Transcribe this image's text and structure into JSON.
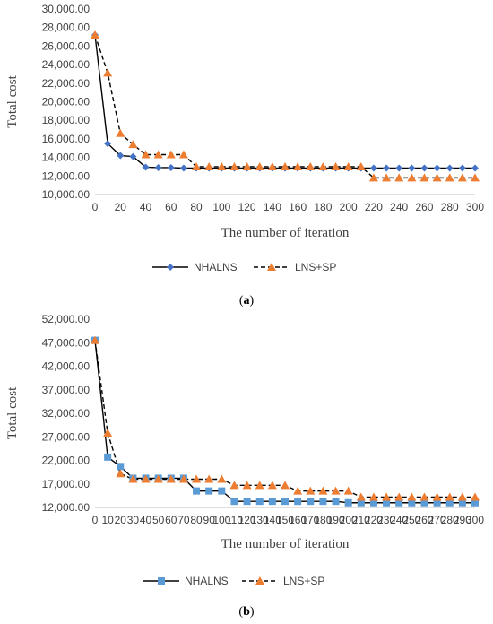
{
  "colors": {
    "nhalns_a": "#4472C4",
    "lns_sp": "#ED7D31",
    "nhalns_b": "#5B9BD5",
    "axis": "#BFBFBF",
    "line": "#000000"
  },
  "chart_data": [
    {
      "type": "line",
      "caption_letter": "a",
      "ylabel": "Total cost",
      "xlabel": "The number of iteration",
      "ylim": [
        10000,
        30000
      ],
      "yticks": [
        10000,
        12000,
        14000,
        16000,
        18000,
        20000,
        22000,
        24000,
        26000,
        28000,
        30000
      ],
      "ytick_labels": [
        "10,000.00",
        "12,000.00",
        "14,000.00",
        "16,000.00",
        "18,000.00",
        "20,000.00",
        "22,000.00",
        "24,000.00",
        "26,000.00",
        "28,000.00",
        "30,000.00"
      ],
      "x": [
        0,
        10,
        20,
        30,
        40,
        50,
        60,
        70,
        80,
        90,
        100,
        110,
        120,
        130,
        140,
        150,
        160,
        170,
        180,
        190,
        200,
        210,
        220,
        230,
        240,
        250,
        260,
        270,
        280,
        290,
        300
      ],
      "xtick_labels": [
        "0",
        "20",
        "40",
        "60",
        "80",
        "100",
        "120",
        "140",
        "160",
        "180",
        "200",
        "220",
        "240",
        "260",
        "280",
        "300"
      ],
      "legend_position": "bottom",
      "series": [
        {
          "name": "NHALNS",
          "marker": "diamond",
          "dash": "solid",
          "values": [
            27200,
            15500,
            14200,
            14100,
            12950,
            12900,
            12900,
            12850,
            12850,
            12850,
            12850,
            12850,
            12850,
            12850,
            12850,
            12850,
            12850,
            12850,
            12850,
            12850,
            12850,
            12850,
            12850,
            12850,
            12850,
            12850,
            12850,
            12850,
            12850,
            12850,
            12850
          ]
        },
        {
          "name": "LNS+SP",
          "marker": "triangle",
          "dash": "dashed",
          "values": [
            27200,
            23100,
            16600,
            15400,
            14300,
            14300,
            14300,
            14300,
            13000,
            13000,
            13000,
            13000,
            13000,
            13000,
            13000,
            13000,
            13000,
            13000,
            13000,
            13000,
            13000,
            13000,
            11800,
            11800,
            11800,
            11800,
            11800,
            11800,
            11800,
            11800,
            11800
          ]
        }
      ]
    },
    {
      "type": "line",
      "caption_letter": "b",
      "ylabel": "Total cost",
      "xlabel": "The number of iteration",
      "ylim": [
        12000,
        52000
      ],
      "yticks": [
        12000,
        17000,
        22000,
        27000,
        32000,
        37000,
        42000,
        47000,
        52000
      ],
      "ytick_labels": [
        "12,000.00",
        "17,000.00",
        "22,000.00",
        "27,000.00",
        "32,000.00",
        "37,000.00",
        "42,000.00",
        "47,000.00",
        "52,000.00"
      ],
      "x": [
        0,
        10,
        20,
        30,
        40,
        50,
        60,
        70,
        80,
        90,
        100,
        110,
        120,
        130,
        140,
        150,
        160,
        170,
        180,
        190,
        200,
        210,
        220,
        230,
        240,
        250,
        260,
        270,
        280,
        290,
        300
      ],
      "xtick_labels": [
        "0",
        "10",
        "20",
        "30",
        "40",
        "50",
        "60",
        "70",
        "80",
        "90",
        "100",
        "110",
        "120",
        "130",
        "140",
        "150",
        "160",
        "170",
        "180",
        "190",
        "200",
        "210",
        "220",
        "230",
        "240",
        "250",
        "260",
        "270",
        "280",
        "290",
        "300"
      ],
      "legend_position": "bottom",
      "series": [
        {
          "name": "NHALNS",
          "marker": "square",
          "dash": "solid",
          "values": [
            47500,
            22700,
            20700,
            18200,
            18200,
            18200,
            18200,
            18200,
            15500,
            15500,
            15500,
            13300,
            13300,
            13300,
            13300,
            13300,
            13300,
            13300,
            13300,
            13300,
            13000,
            13000,
            13000,
            13000,
            13000,
            13000,
            13000,
            13000,
            13000,
            13000,
            13000
          ]
        },
        {
          "name": "LNS+SP",
          "marker": "triangle",
          "dash": "dashed",
          "values": [
            47500,
            27800,
            19200,
            18000,
            18000,
            18000,
            18000,
            18000,
            18000,
            18000,
            18000,
            16700,
            16700,
            16700,
            16700,
            16700,
            15500,
            15500,
            15500,
            15500,
            15500,
            14200,
            14200,
            14200,
            14200,
            14200,
            14200,
            14200,
            14200,
            14200,
            14200
          ]
        }
      ]
    }
  ]
}
